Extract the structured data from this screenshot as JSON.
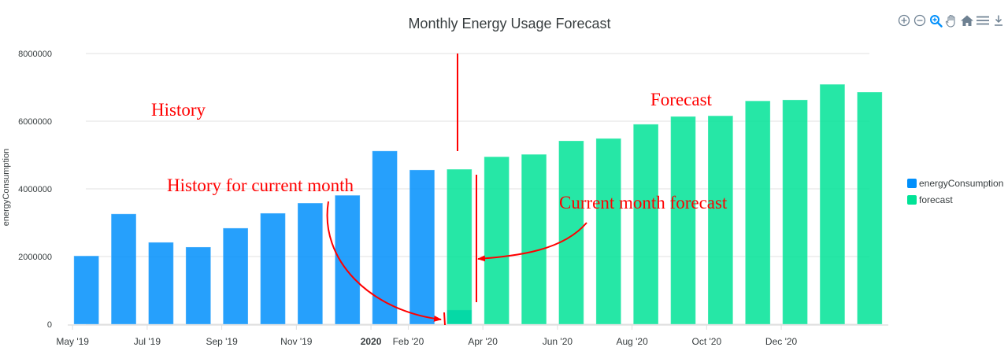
{
  "toolbar": {
    "icons": [
      "zoom-in-icon",
      "zoom-out-icon",
      "selection-zoom-icon",
      "pan-hand-icon",
      "reset-home-icon",
      "menu-icon",
      "download-icon"
    ],
    "active": "selection-zoom-icon",
    "colors": {
      "default": "#6e8192",
      "active": "#008ffb"
    }
  },
  "chart_data": {
    "type": "bar",
    "title": "Monthly Energy Usage Forecast",
    "xlabel": "",
    "ylabel": "energyConsumption",
    "ylim": [
      0,
      8000000
    ],
    "yticks": [
      0,
      2000000,
      4000000,
      6000000,
      8000000
    ],
    "ytick_labels": [
      "0",
      "2000000",
      "4000000",
      "6000000",
      "8000000"
    ],
    "grid": true,
    "categories": [
      "May '19",
      "Jun '19",
      "Jul '19",
      "Aug '19",
      "Sep '19",
      "Oct '19",
      "Nov '19",
      "Dec '19",
      "Jan '20",
      "Feb '20",
      "Mar '20",
      "Apr '20",
      "May '20",
      "Jun '20",
      "Jul '20",
      "Aug '20",
      "Sep '20",
      "Oct '20",
      "Nov '20",
      "Dec '20",
      "Jan '21",
      "Feb '21"
    ],
    "xtick_labels": [
      {
        "index": 0,
        "label": "May '19",
        "bold": false
      },
      {
        "index": 2,
        "label": "Jul '19",
        "bold": false
      },
      {
        "index": 4,
        "label": "Sep '19",
        "bold": false
      },
      {
        "index": 6,
        "label": "Nov '19",
        "bold": false
      },
      {
        "index": 8,
        "label": "2020",
        "bold": true
      },
      {
        "index": 9,
        "label": "Feb '20",
        "bold": false
      },
      {
        "index": 11,
        "label": "Apr '20",
        "bold": false
      },
      {
        "index": 13,
        "label": "Jun '20",
        "bold": false
      },
      {
        "index": 15,
        "label": "Aug '20",
        "bold": false
      },
      {
        "index": 17,
        "label": "Oct '20",
        "bold": false
      },
      {
        "index": 19,
        "label": "Dec '20",
        "bold": false
      }
    ],
    "series": [
      {
        "name": "energyConsumption",
        "color": "#008ffb",
        "values": [
          2020000,
          3260000,
          2420000,
          2280000,
          2840000,
          3280000,
          3580000,
          3810000,
          5120000,
          4560000,
          420000,
          null,
          null,
          null,
          null,
          null,
          null,
          null,
          null,
          null,
          null,
          null
        ]
      },
      {
        "name": "forecast",
        "color": "#00e396",
        "values": [
          null,
          null,
          null,
          null,
          null,
          null,
          null,
          null,
          null,
          null,
          4580000,
          4950000,
          5020000,
          5420000,
          5490000,
          5910000,
          6140000,
          6160000,
          6600000,
          6630000,
          7090000,
          6860000
        ]
      }
    ],
    "legend": {
      "position": "right",
      "entries": [
        {
          "name": "energyConsumption",
          "color": "#008ffb"
        },
        {
          "name": "forecast",
          "color": "#00e396"
        }
      ]
    },
    "annotations": {
      "color": "#ff0000",
      "texts": [
        {
          "text": "History",
          "x_index": 3,
          "y": 6400000
        },
        {
          "text": "History for current month",
          "x_index": 6,
          "y": 4100000
        },
        {
          "text": "Forecast",
          "x_index": 16,
          "y": 6700000
        },
        {
          "text": "Current month forecast",
          "x_index": 15.5,
          "y": 3580000
        }
      ]
    }
  }
}
